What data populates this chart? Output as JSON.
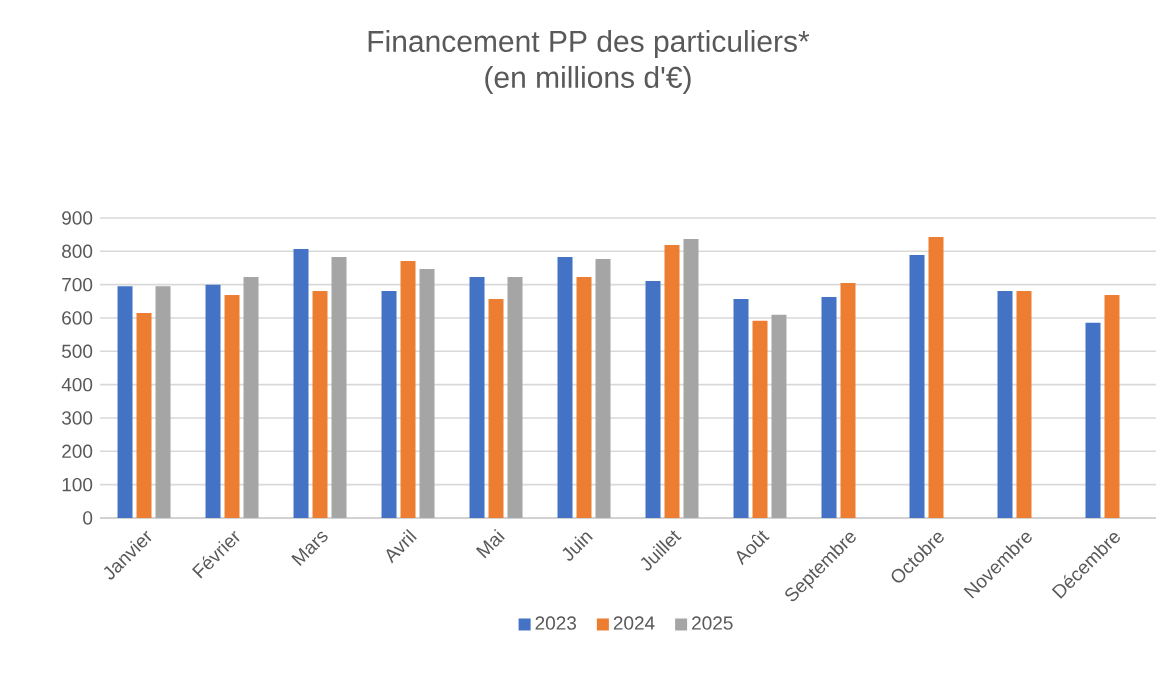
{
  "chart_data": {
    "type": "bar",
    "title": "Financement PP des particuliers*",
    "subtitle": "(en millions d'€)",
    "categories": [
      "Janvier",
      "Février",
      "Mars",
      "Avril",
      "Mai",
      "Juin",
      "Juillet",
      "Août",
      "Septembre",
      "Octobre",
      "Novembre",
      "Décembre"
    ],
    "series": [
      {
        "name": "2023",
        "color": "#4472c4",
        "values": [
          695,
          700,
          807,
          681,
          723,
          783,
          711,
          657,
          663,
          789,
          681,
          586
        ]
      },
      {
        "name": "2024",
        "color": "#ed7d31",
        "values": [
          615,
          669,
          681,
          771,
          657,
          723,
          819,
          592,
          705,
          843,
          681,
          669
        ]
      },
      {
        "name": "2025",
        "color": "#a5a5a5",
        "values": [
          695,
          723,
          783,
          747,
          723,
          777,
          837,
          610,
          null,
          null,
          null,
          null
        ]
      }
    ],
    "ylim": [
      0,
      900
    ],
    "yticks": [
      0,
      100,
      200,
      300,
      400,
      500,
      600,
      700,
      800,
      900
    ],
    "grid": "y",
    "legend": "bottom"
  }
}
